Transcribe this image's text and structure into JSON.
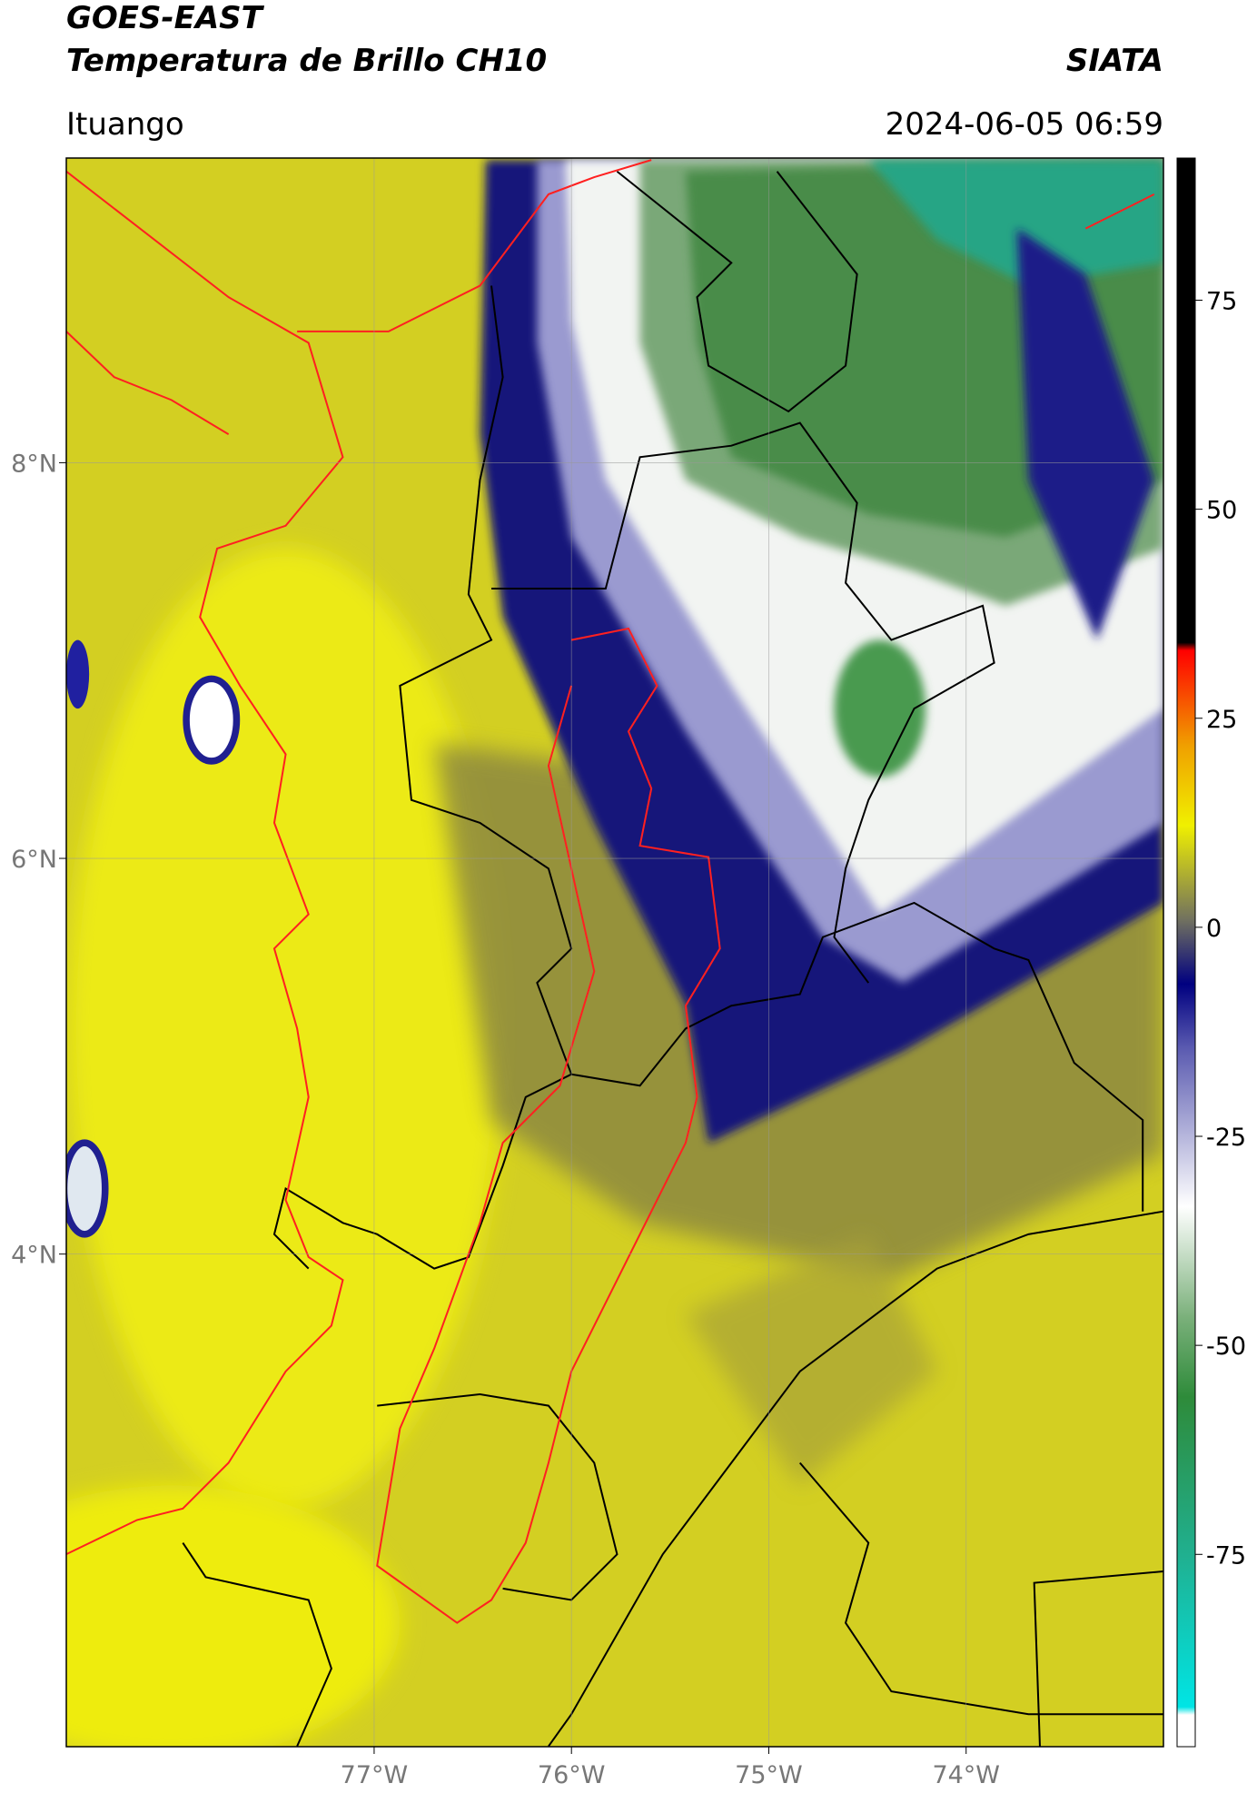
{
  "header": {
    "title": "GOES-EAST",
    "subtitle": "Temperatura de Brillo CH10",
    "source": "SIATA",
    "location": "Ituango",
    "datetime": "2024-06-05 06:59"
  },
  "map": {
    "xlim": [
      -78.56,
      -73.0
    ],
    "ylim": [
      1.51,
      9.54
    ],
    "xticks": [
      {
        "value": -77,
        "label": "77°W"
      },
      {
        "value": -76,
        "label": "76°W"
      },
      {
        "value": -75,
        "label": "75°W"
      },
      {
        "value": -74,
        "label": "74°W"
      }
    ],
    "yticks": [
      {
        "value": 4,
        "label": "4°N"
      },
      {
        "value": 6,
        "label": "6°N"
      },
      {
        "value": 8,
        "label": "8°N"
      }
    ],
    "grid": true
  },
  "colorbar": {
    "lim": [
      -98,
      92
    ],
    "ticks": [
      -75,
      -50,
      -25,
      0,
      25,
      50,
      75
    ]
  }
}
